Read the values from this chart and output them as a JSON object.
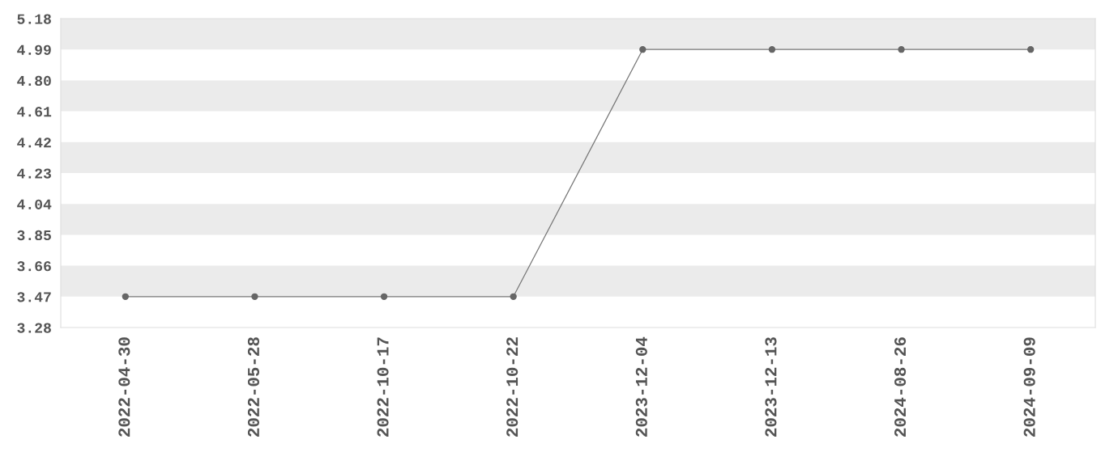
{
  "chart_data": {
    "type": "line",
    "categories": [
      "2022-04-30",
      "2022-05-28",
      "2022-10-17",
      "2022-10-22",
      "2023-12-04",
      "2023-12-13",
      "2024-08-26",
      "2024-09-09"
    ],
    "series": [
      {
        "color": "#666666",
        "values": [
          3.47,
          3.47,
          3.47,
          3.47,
          4.99,
          4.99,
          4.99,
          4.99
        ]
      }
    ],
    "ylim": [
      3.28,
      5.18
    ],
    "yticks": [
      {
        "value": 3.28,
        "label": "3.28"
      },
      {
        "value": 3.47,
        "label": "3.47"
      },
      {
        "value": 3.66,
        "label": "3.66"
      },
      {
        "value": 3.85,
        "label": "3.85"
      },
      {
        "value": 4.04,
        "label": "4.04"
      },
      {
        "value": 4.23,
        "label": "4.23"
      },
      {
        "value": 4.42,
        "label": "4.42"
      },
      {
        "value": 4.61,
        "label": "4.61"
      },
      {
        "value": 4.8,
        "label": "4.80"
      },
      {
        "value": 4.99,
        "label": "4.99"
      },
      {
        "value": 5.18,
        "label": "5.18"
      }
    ],
    "bands": [
      {
        "axis": "y",
        "from": 3.47,
        "to": 3.66,
        "color": "#ebebeb"
      },
      {
        "axis": "y",
        "from": 3.85,
        "to": 4.04,
        "color": "#ebebeb"
      },
      {
        "axis": "y",
        "from": 4.23,
        "to": 4.42,
        "color": "#ebebeb"
      },
      {
        "axis": "y",
        "from": 4.61,
        "to": 4.8,
        "color": "#ebebeb"
      },
      {
        "axis": "y",
        "from": 4.99,
        "to": 5.18,
        "color": "#ebebeb"
      }
    ],
    "marker": "circle",
    "line_style": "solid",
    "legend": false
  }
}
